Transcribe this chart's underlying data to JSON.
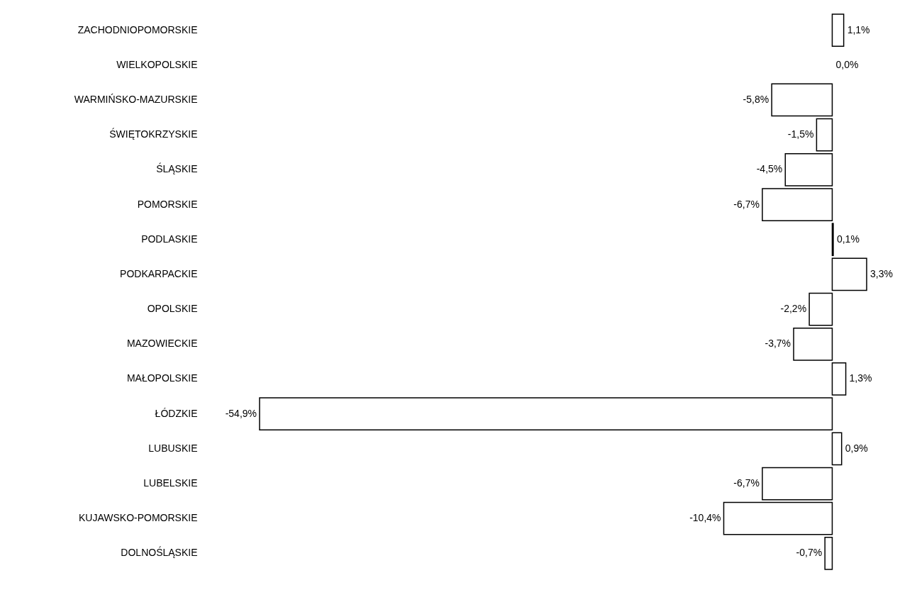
{
  "chart_data": {
    "type": "bar",
    "orientation": "horizontal",
    "color": "#ffffff",
    "categories": [
      "ZACHODNIOPOMORSKIE",
      "WIELKOPOLSKIE",
      "WARMIŃSKO-MAZURSKIE",
      "ŚWIĘTOKRZYSKIE",
      "ŚLĄSKIE",
      "POMORSKIE",
      "PODLASKIE",
      "PODKARPACKIE",
      "OPOLSKIE",
      "MAZOWIECKIE",
      "MAŁOPOLSKIE",
      "ŁÓDZKIE",
      "LUBUSKIE",
      "LUBELSKIE",
      "KUJAWSKO-POMORSKIE",
      "DOLNOŚLĄSKIE"
    ],
    "values": [
      1.1,
      0.0,
      -5.8,
      -1.5,
      -4.5,
      -6.7,
      0.1,
      3.3,
      -2.2,
      -3.7,
      1.3,
      -54.9,
      0.9,
      -6.7,
      -10.4,
      -0.7
    ],
    "value_labels": [
      "1,1%",
      "0,0%",
      "-5,8%",
      "-1,5%",
      "-4,5%",
      "-6,7%",
      "0,1%",
      "3,3%",
      "-2,2%",
      "-3,7%",
      "1,3%",
      "-54,9%",
      "0,9%",
      "-6,7%",
      "-10,4%",
      "-0,7%"
    ]
  }
}
